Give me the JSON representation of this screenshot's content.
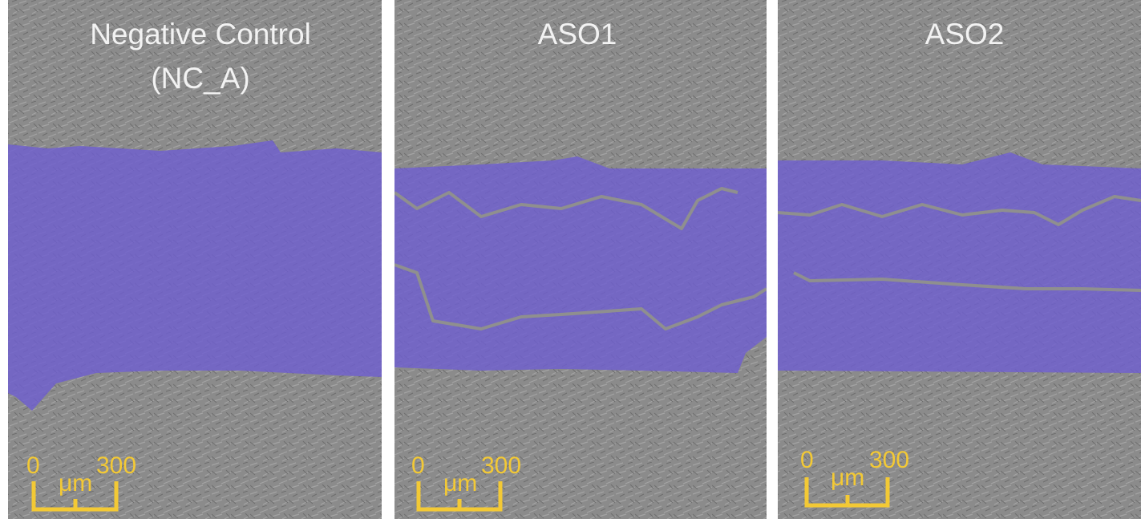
{
  "panels": [
    {
      "title": [
        "Negative Control",
        "(NC_A)"
      ],
      "scale": {
        "start": 0,
        "unit": "μm",
        "end": 300
      }
    },
    {
      "title": [
        "ASO1"
      ],
      "scale": {
        "start": 0,
        "unit": "μm",
        "end": 300
      }
    },
    {
      "title": [
        "ASO2"
      ],
      "scale": {
        "start": 0,
        "unit": "μm",
        "end": 300
      }
    }
  ]
}
